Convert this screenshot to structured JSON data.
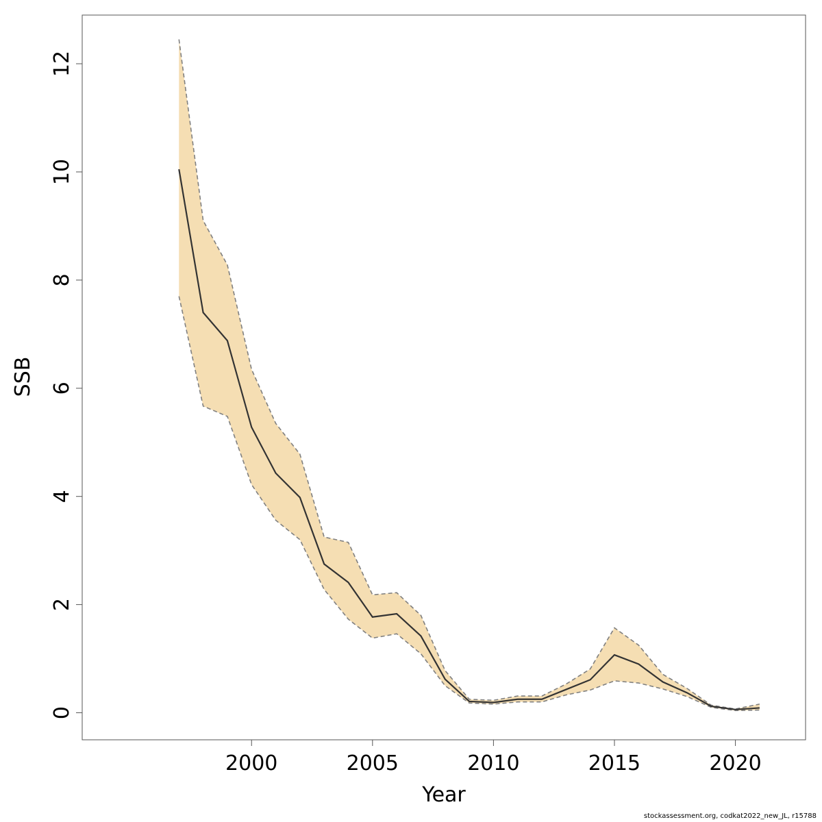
{
  "chart_data": {
    "type": "line",
    "title": "",
    "xlabel": "Year",
    "ylabel": "SSB",
    "xlim": [
      1993,
      2022.9
    ],
    "ylim": [
      -0.5,
      12.9
    ],
    "x_ticks": [
      2000,
      2005,
      2010,
      2015,
      2020
    ],
    "y_ticks": [
      0,
      2,
      4,
      6,
      8,
      10,
      12
    ],
    "grid": false,
    "legend": "none",
    "x": [
      1997,
      1998,
      1999,
      2000,
      2001,
      2002,
      2003,
      2004,
      2005,
      2006,
      2007,
      2008,
      2009,
      2010,
      2011,
      2012,
      2013,
      2014,
      2015,
      2016,
      2017,
      2018,
      2019,
      2020,
      2021
    ],
    "series": [
      {
        "role": "estimate",
        "values": [
          10.05,
          7.4,
          6.88,
          5.28,
          4.43,
          3.98,
          2.75,
          2.41,
          1.77,
          1.83,
          1.42,
          0.62,
          0.21,
          0.19,
          0.25,
          0.25,
          0.43,
          0.61,
          1.07,
          0.9,
          0.57,
          0.37,
          0.12,
          0.06,
          0.09
        ]
      },
      {
        "role": "upper",
        "values": [
          12.45,
          9.1,
          8.28,
          6.35,
          5.35,
          4.78,
          3.25,
          3.15,
          2.18,
          2.22,
          1.8,
          0.78,
          0.25,
          0.23,
          0.31,
          0.31,
          0.53,
          0.81,
          1.57,
          1.25,
          0.71,
          0.45,
          0.14,
          0.07,
          0.16
        ]
      },
      {
        "role": "lower",
        "values": [
          7.7,
          5.67,
          5.48,
          4.22,
          3.56,
          3.2,
          2.28,
          1.73,
          1.38,
          1.46,
          1.09,
          0.5,
          0.18,
          0.16,
          0.2,
          0.2,
          0.33,
          0.42,
          0.59,
          0.55,
          0.44,
          0.3,
          0.1,
          0.04,
          0.05
        ]
      }
    ],
    "colors": {
      "band": "#f5deb3",
      "estimate": "#333333",
      "bounds": "#808080"
    }
  },
  "footnote": "stockassessment.org, codkat2022_new_JL, r15788"
}
